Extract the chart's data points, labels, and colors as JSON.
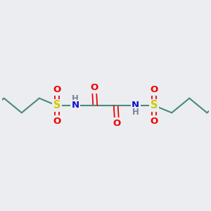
{
  "bg_color": "#ecedf0",
  "bond_color": "#4a8a7a",
  "n_color": "#1010cc",
  "o_color": "#ee0000",
  "s_color": "#cccc00",
  "line_width": 1.5,
  "font_size": 9.5,
  "figsize": [
    3.0,
    3.0
  ],
  "dpi": 100,
  "xlim": [
    0,
    10
  ],
  "ylim": [
    0,
    10
  ]
}
